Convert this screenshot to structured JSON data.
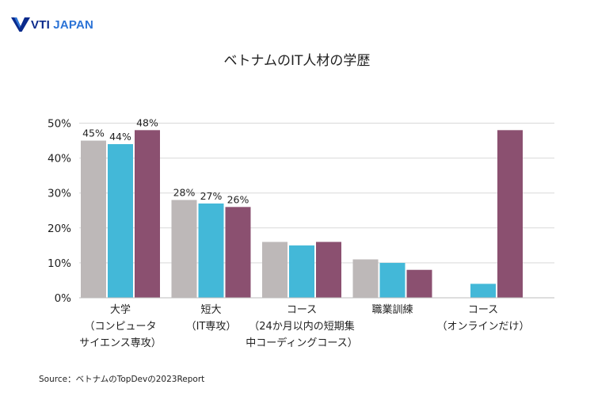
{
  "brand": {
    "vti": "VTI",
    "japan": " JAPAN",
    "accent": "#0a2a8c",
    "accent_light": "#2b73d6"
  },
  "source": "Source：ベトナムのTopDevの2023Report",
  "chart_data": {
    "type": "bar",
    "title": "ベトナムのIT人材の学歴",
    "xlabel": "",
    "ylabel": "",
    "ylim": [
      0,
      50
    ],
    "yticks": [
      0,
      10,
      20,
      30,
      40,
      50
    ],
    "ytick_labels": [
      "0%",
      "10%",
      "20%",
      "30%",
      "40%",
      "50%"
    ],
    "grid": true,
    "legend": "none",
    "categories": [
      [
        "大学",
        "（コンピュータ",
        "サイエンス専攻）"
      ],
      [
        "短大",
        "（IT専攻）"
      ],
      [
        "コース",
        "（24か月以内の短期集",
        "中コーディングコース）"
      ],
      [
        "職業訓練"
      ],
      [
        "コース",
        "（オンラインだけ）"
      ]
    ],
    "series": [
      {
        "name": "series-1",
        "color": "#bdb8b8",
        "values": [
          45,
          28,
          16,
          11,
          0
        ]
      },
      {
        "name": "series-2",
        "color": "#43b8d8",
        "values": [
          44,
          27,
          15,
          10,
          4
        ]
      },
      {
        "name": "series-3",
        "color": "#8b5070",
        "values": [
          48,
          26,
          16,
          8,
          48
        ]
      }
    ],
    "data_labels": [
      [
        "45%",
        "44%",
        "48%"
      ],
      [
        "28%",
        "27%",
        "26%"
      ],
      null,
      null,
      null
    ]
  }
}
